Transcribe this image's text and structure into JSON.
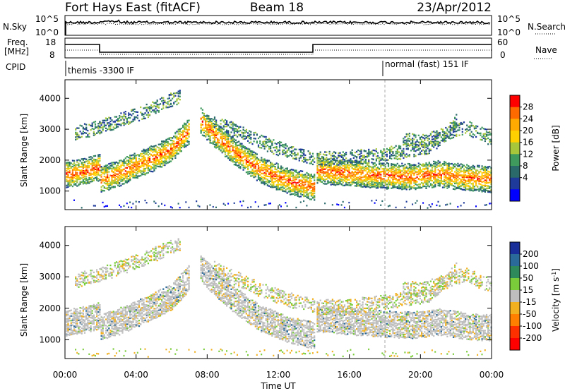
{
  "header": {
    "station": "Fort Hays East (fitACF)",
    "beam": "Beam 18",
    "date": "23/Apr/2012"
  },
  "top_panels": {
    "nsky_label": "N.Sky",
    "nsky_ticks": [
      "10^5",
      "10^0"
    ],
    "nsearch_label": "N.Search",
    "nsearch_ticks": [
      "10^5",
      "10^0"
    ],
    "freq_label": "Freq.",
    "freq_unit": "[MHz]",
    "freq_ticks": [
      "18",
      "8"
    ],
    "nave_label": "Nave",
    "nave_ticks": [
      "60",
      "0"
    ],
    "cpid_label": "CPID",
    "cpid_modes": [
      {
        "text": "themis -3300 IF",
        "start_hour": 0
      },
      {
        "text": "normal (fast) 151 IF",
        "start_hour": 18
      }
    ]
  },
  "chart_data": [
    {
      "type": "heatmap",
      "name": "power",
      "ylabel": "Slant Range [km]",
      "ylim": [
        400,
        4600
      ],
      "yticks": [
        1000,
        2000,
        3000,
        4000
      ],
      "xlabel": "Time UT",
      "xlim": [
        0,
        24
      ],
      "xticks": [
        "00:00",
        "04:00",
        "08:00",
        "12:00",
        "16:00",
        "20:00",
        "00:00"
      ],
      "colorbar_label": "Power [dB]",
      "colorbar_ticks": [
        "28",
        "24",
        "20",
        "16",
        "12",
        "8",
        "4"
      ],
      "colorbar_colors": [
        "#ff0000",
        "#ff6a00",
        "#ffaa00",
        "#ffd000",
        "#a8c63a",
        "#3f9a5e",
        "#2a6a6a",
        "#1e3a9a",
        "#0000ff"
      ]
    },
    {
      "type": "heatmap",
      "name": "velocity",
      "ylabel": "Slant Range [km]",
      "ylim": [
        400,
        4600
      ],
      "yticks": [
        1000,
        2000,
        3000,
        4000
      ],
      "xlabel": "Time UT",
      "xlim": [
        0,
        24
      ],
      "xticks": [
        "00:00",
        "04:00",
        "08:00",
        "12:00",
        "16:00",
        "20:00",
        "00:00"
      ],
      "colorbar_label": "Velocity [m s",
      "colorbar_label_sup": "-1",
      "colorbar_label_end": "]",
      "colorbar_ticks": [
        "200",
        "100",
        "50",
        "15",
        "-15",
        "-50",
        "-100",
        "-200"
      ],
      "colorbar_colors": [
        "#1a2e9a",
        "#2a6a9a",
        "#2e8a5a",
        "#7acc3a",
        "#bebebe",
        "#f0b020",
        "#ff8000",
        "#ff3000",
        "#ff0000"
      ]
    }
  ],
  "xaxis": {
    "label": "Time UT",
    "ticks": [
      "00:00",
      "04:00",
      "08:00",
      "12:00",
      "16:00",
      "20:00",
      "00:00"
    ]
  }
}
